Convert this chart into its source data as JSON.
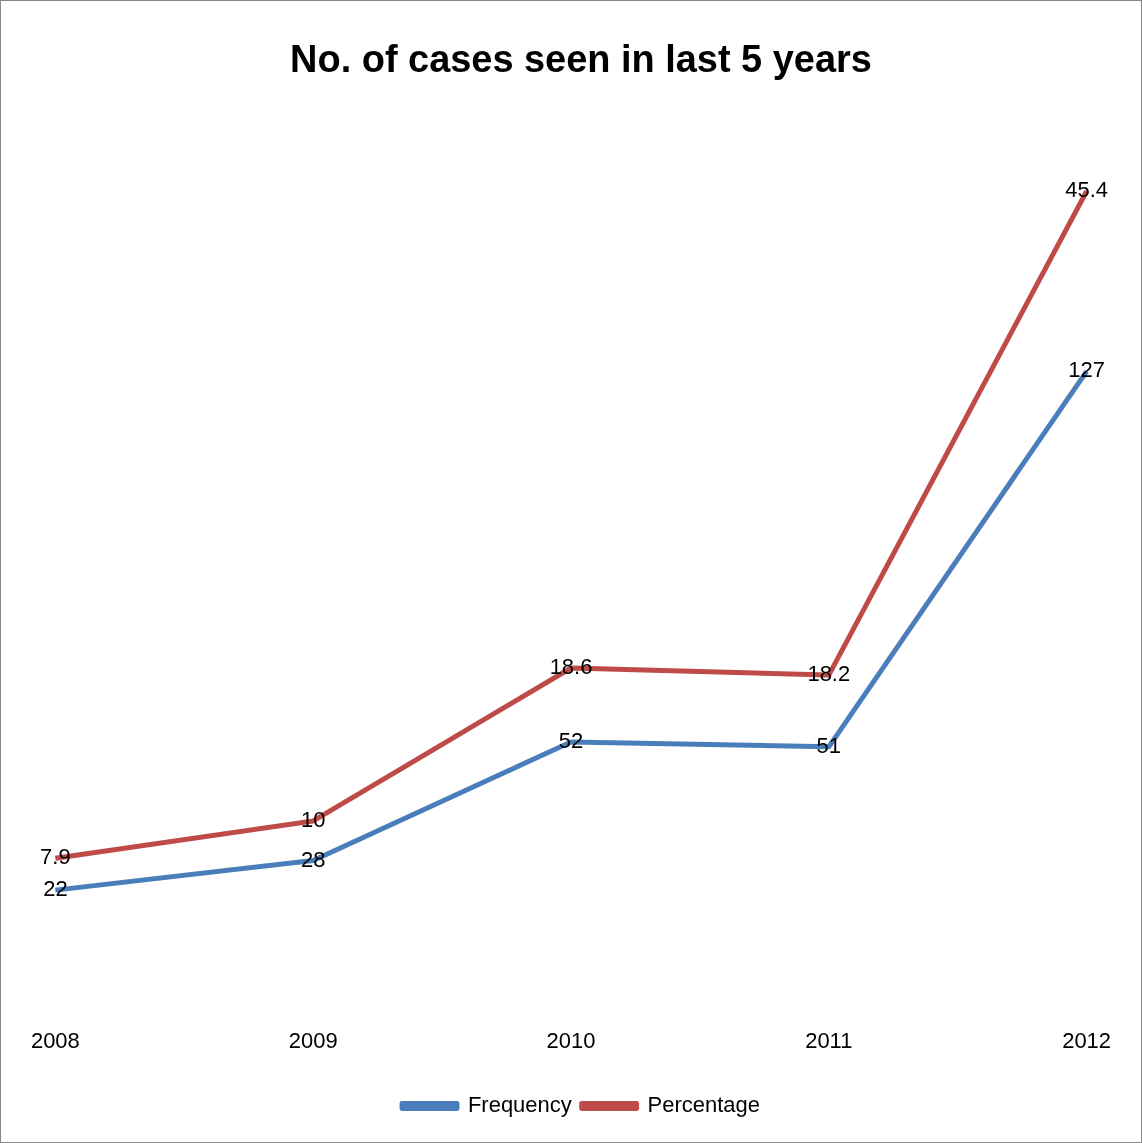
{
  "chart_data": {
    "type": "line",
    "title": "No. of cases seen in last 5 years",
    "categories": [
      "2008",
      "2009",
      "2010",
      "2011",
      "2012"
    ],
    "series": [
      {
        "name": "Frequency",
        "color": "#4a7ebb",
        "values": [
          22,
          28,
          52,
          51,
          127
        ]
      },
      {
        "name": "Percentage",
        "color": "#be4b48",
        "values": [
          7.9,
          10,
          18.6,
          18.2,
          45.4
        ],
        "axis": "y2"
      }
    ],
    "data_labels": true,
    "legend": "bottom",
    "tick_labels": "x",
    "marker": "none",
    "grid": false
  }
}
